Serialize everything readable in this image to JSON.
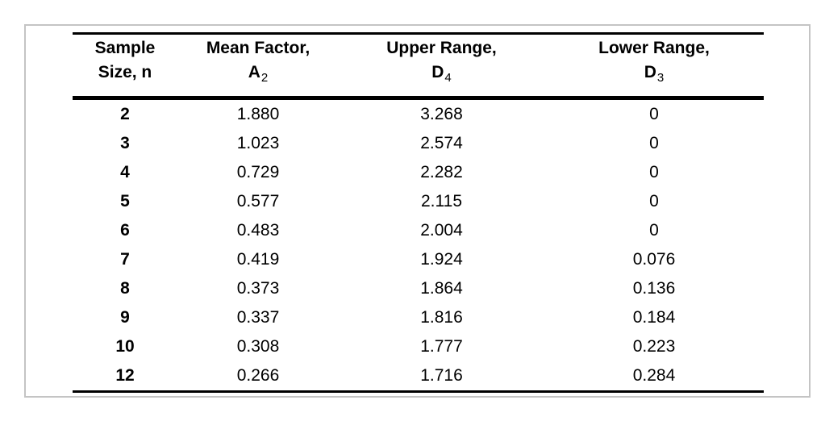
{
  "page": {
    "background_color": "#ffffff",
    "frame_border_color": "#c4c4c4",
    "rule_color": "#000000",
    "text_color": "#000000"
  },
  "table": {
    "headers": [
      {
        "key": "sample-size",
        "line1": "Sample",
        "line2": "Size, n",
        "sub": ""
      },
      {
        "key": "mean-factor",
        "line1": "Mean Factor,",
        "line2": "A",
        "sub": "2"
      },
      {
        "key": "upper-range",
        "line1": "Upper Range,",
        "line2": "D",
        "sub": "4"
      },
      {
        "key": "lower-range",
        "line1": "Lower Range,",
        "line2": "D",
        "sub": "3"
      }
    ],
    "rows": [
      [
        "2",
        "1.880",
        "3.268",
        "0"
      ],
      [
        "3",
        "1.023",
        "2.574",
        "0"
      ],
      [
        "4",
        "0.729",
        "2.282",
        "0"
      ],
      [
        "5",
        "0.577",
        "2.115",
        "0"
      ],
      [
        "6",
        "0.483",
        "2.004",
        "0"
      ],
      [
        "7",
        "0.419",
        "1.924",
        "0.076"
      ],
      [
        "8",
        "0.373",
        "1.864",
        "0.136"
      ],
      [
        "9",
        "0.337",
        "1.816",
        "0.184"
      ],
      [
        "10",
        "0.308",
        "1.777",
        "0.223"
      ],
      [
        "12",
        "0.266",
        "1.716",
        "0.284"
      ]
    ]
  },
  "chart_data": {
    "type": "table",
    "title": "",
    "columns": [
      "Sample Size, n",
      "Mean Factor, A2",
      "Upper Range, D4",
      "Lower Range, D3"
    ],
    "rows": [
      [
        2,
        1.88,
        3.268,
        0
      ],
      [
        3,
        1.023,
        2.574,
        0
      ],
      [
        4,
        0.729,
        2.282,
        0
      ],
      [
        5,
        0.577,
        2.115,
        0
      ],
      [
        6,
        0.483,
        2.004,
        0
      ],
      [
        7,
        0.419,
        1.924,
        0.076
      ],
      [
        8,
        0.373,
        1.864,
        0.136
      ],
      [
        9,
        0.337,
        1.816,
        0.184
      ],
      [
        10,
        0.308,
        1.777,
        0.223
      ],
      [
        12,
        0.266,
        1.716,
        0.284
      ]
    ],
    "layout": {
      "header_rows": 2,
      "gridlines": "horizontal rules only: thin top, thick under header, thin bottom",
      "first_column_bold": true
    }
  }
}
